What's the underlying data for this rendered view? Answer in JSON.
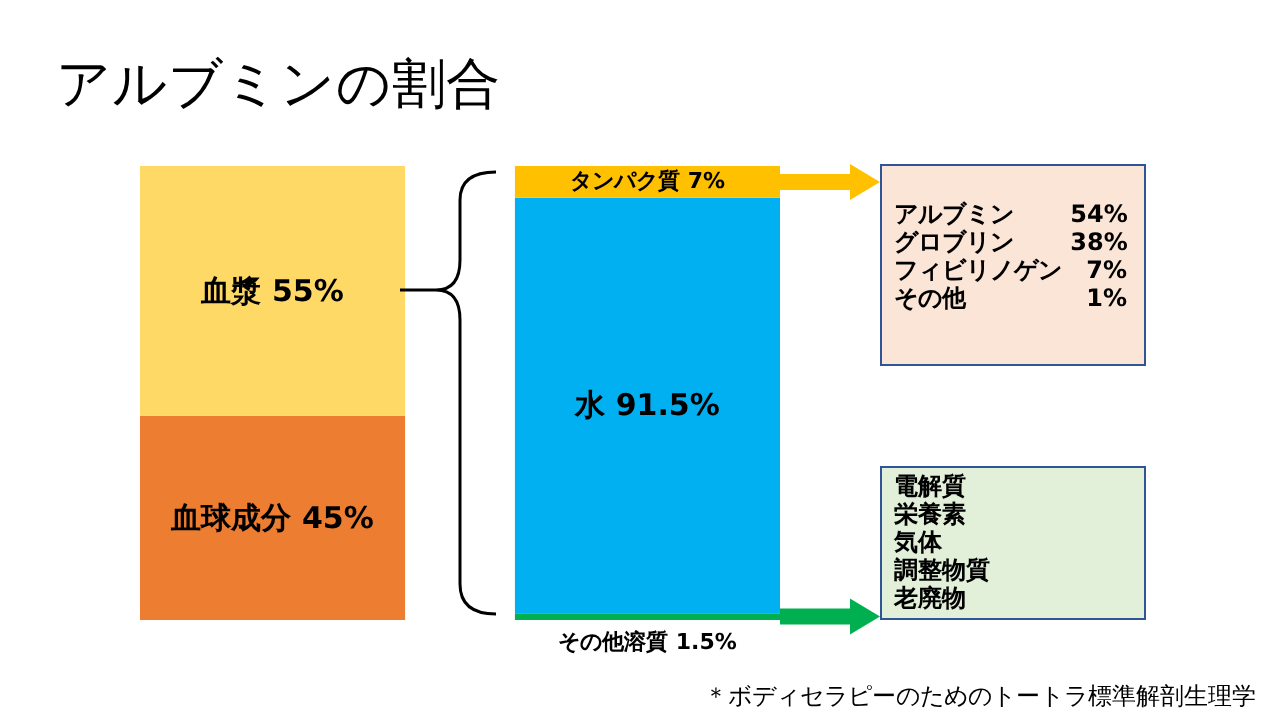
{
  "chart_data": {
    "type": "bar",
    "stacked": true,
    "title": "アルブミンの割合",
    "categories": [
      null,
      null
    ],
    "series": [
      {
        "name": "血球成分",
        "color": "#ed7d31",
        "values": [
          45,
          null
        ],
        "value_labels": [
          "45%",
          null
        ]
      },
      {
        "name": "血漿",
        "color": "#ffd966",
        "values": [
          55,
          null
        ],
        "value_labels": [
          "55%",
          null
        ]
      },
      {
        "name": "その他溶質",
        "color": "#00b050",
        "values": [
          null,
          1.5
        ],
        "value_labels": [
          null,
          "1.5%"
        ]
      },
      {
        "name": "水",
        "color": "#00b0f0",
        "values": [
          null,
          91.5
        ],
        "value_labels": [
          null,
          "91.5%"
        ]
      },
      {
        "name": "タンパク質",
        "color": "#ffc000",
        "values": [
          null,
          7
        ],
        "value_labels": [
          null,
          "7%"
        ]
      }
    ],
    "annotations": [
      "アルブミン 54%",
      "グロブリン 38%",
      "フィビリノゲン 7%",
      "その他 1%",
      "電解質",
      "栄養素",
      "気体",
      "調整物質",
      "老廃物",
      "＊ボディセラピーのためのトートラ標準解剖生理学"
    ]
  }
}
